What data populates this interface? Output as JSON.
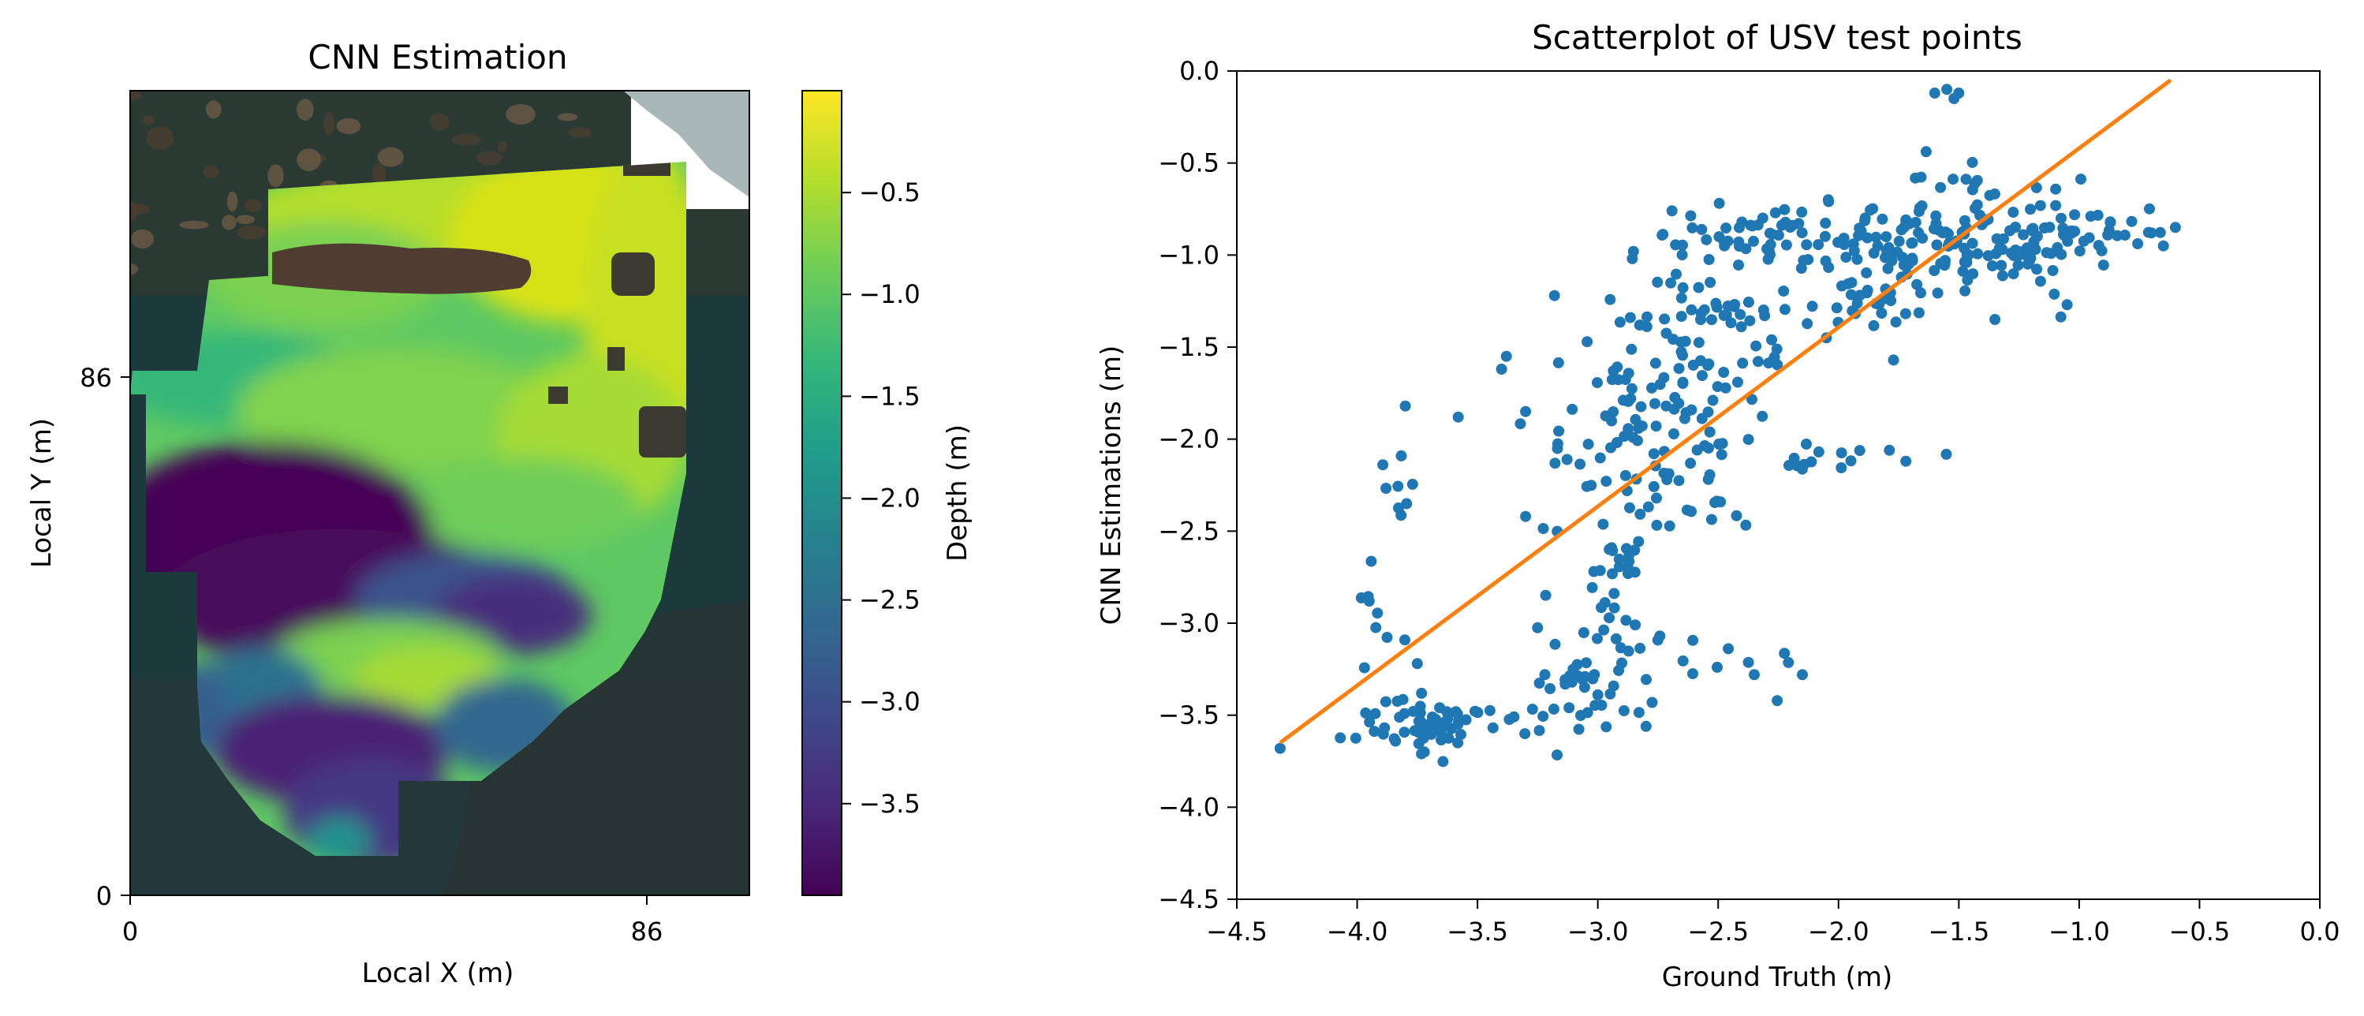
{
  "chart_data": [
    {
      "type": "heatmap",
      "title": "CNN Estimation",
      "xlabel": "Local X (m)",
      "ylabel": "Local Y (m)",
      "x_ticks": [
        "0",
        "86"
      ],
      "y_ticks": [
        "0",
        "86"
      ],
      "xlim": [
        0,
        102
      ],
      "ylim": [
        0,
        134
      ],
      "colorbar": {
        "label": "Depth (m)",
        "range": [
          -3.95,
          0.0
        ],
        "ticks": [
          -0.5,
          -1.0,
          -1.5,
          -2.0,
          -2.5,
          -3.0,
          -3.5
        ],
        "tick_labels": [
          "−0.5",
          "−1.0",
          "−1.5",
          "−2.0",
          "−2.5",
          "−3.0",
          "−3.5"
        ],
        "colormap_stops": [
          "#440154",
          "#482878",
          "#3e4989",
          "#31688e",
          "#26828e",
          "#1f9e89",
          "#35b779",
          "#6ece58",
          "#b5de2b",
          "#fde725"
        ]
      },
      "background": {
        "water": "#1a3a3c",
        "rock": "#5a4a3a",
        "no_data": "#ffffff"
      }
    },
    {
      "type": "scatter",
      "title": "Scatterplot of USV test points",
      "xlabel": "Ground Truth (m)",
      "ylabel": "CNN Estimations (m)",
      "xlim": [
        -4.5,
        0.0
      ],
      "ylim": [
        -4.5,
        0.0
      ],
      "x_ticks": [
        -4.5,
        -4.0,
        -3.5,
        -3.0,
        -2.5,
        -2.0,
        -1.5,
        -1.0,
        -0.5,
        0.0
      ],
      "x_tick_labels": [
        "−4.5",
        "−4.0",
        "−3.5",
        "−3.0",
        "−2.5",
        "−2.0",
        "−1.5",
        "−1.0",
        "−0.5",
        "0.0"
      ],
      "y_ticks": [
        0.0,
        -0.5,
        -1.0,
        -1.5,
        -2.0,
        -2.5,
        -3.0,
        -3.5,
        -4.0,
        -4.5
      ],
      "y_tick_labels": [
        "0.0",
        "−0.5",
        "−1.0",
        "−1.5",
        "−2.0",
        "−2.5",
        "−3.0",
        "−3.5",
        "−4.0",
        "−4.5"
      ],
      "point_color": "#1f77b4",
      "line_color": "#ff7f0e",
      "fit_line": {
        "x": [
          -4.32,
          -0.62
        ],
        "y": [
          -3.65,
          -0.05
        ]
      },
      "clusters": [
        {
          "cx": -3.7,
          "cy": -3.55,
          "sx": 0.14,
          "sy": 0.08,
          "n": 70
        },
        {
          "cx": -3.92,
          "cy": -3.0,
          "sx": 0.06,
          "sy": 0.15,
          "n": 8
        },
        {
          "cx": -3.85,
          "cy": -2.15,
          "sx": 0.07,
          "sy": 0.18,
          "n": 8
        },
        {
          "cx": -3.05,
          "cy": -3.3,
          "sx": 0.1,
          "sy": 0.15,
          "n": 40
        },
        {
          "cx": -2.85,
          "cy": -3.1,
          "sx": 0.08,
          "sy": 0.22,
          "n": 14
        },
        {
          "cx": -2.9,
          "cy": -2.7,
          "sx": 0.08,
          "sy": 0.18,
          "n": 14
        },
        {
          "cx": -2.8,
          "cy": -2.05,
          "sx": 0.22,
          "sy": 0.28,
          "n": 100
        },
        {
          "cx": -2.6,
          "cy": -1.45,
          "sx": 0.22,
          "sy": 0.2,
          "n": 70
        },
        {
          "cx": -2.2,
          "cy": -0.9,
          "sx": 0.3,
          "sy": 0.08,
          "n": 85
        },
        {
          "cx": -1.85,
          "cy": -1.2,
          "sx": 0.17,
          "sy": 0.12,
          "n": 35
        },
        {
          "cx": -1.4,
          "cy": -0.92,
          "sx": 0.22,
          "sy": 0.13,
          "n": 110
        },
        {
          "cx": -0.95,
          "cy": -0.85,
          "sx": 0.13,
          "sy": 0.1,
          "n": 28
        },
        {
          "cx": -1.6,
          "cy": -0.6,
          "sx": 0.08,
          "sy": 0.1,
          "n": 10
        },
        {
          "cx": -2.0,
          "cy": -2.08,
          "sx": 0.14,
          "sy": 0.05,
          "n": 14
        },
        {
          "cx": -2.5,
          "cy": -3.2,
          "sx": 0.25,
          "sy": 0.15,
          "n": 10
        }
      ],
      "extra_points": [
        [
          -4.32,
          -3.68
        ],
        [
          -1.55,
          -0.1
        ],
        [
          -1.5,
          -0.12
        ],
        [
          -1.52,
          -0.15
        ],
        [
          -1.6,
          -0.12
        ],
        [
          -0.6,
          -0.85
        ],
        [
          -0.65,
          -0.95
        ],
        [
          -0.7,
          -0.88
        ],
        [
          -3.38,
          -1.55
        ],
        [
          -3.4,
          -1.62
        ],
        [
          -3.8,
          -1.82
        ],
        [
          -3.58,
          -1.88
        ],
        [
          -3.3,
          -1.85
        ],
        [
          -2.15,
          -3.28
        ],
        [
          -2.35,
          -3.28
        ],
        [
          -3.75,
          -3.22
        ],
        [
          -3.95,
          -2.88
        ],
        [
          -3.22,
          -3.28
        ],
        [
          -2.05,
          -1.45
        ],
        [
          -1.35,
          -1.35
        ],
        [
          -1.05,
          -1.27
        ],
        [
          -3.18,
          -1.22
        ],
        [
          -3.3,
          -2.42
        ],
        [
          -1.72,
          -2.12
        ]
      ]
    }
  ]
}
